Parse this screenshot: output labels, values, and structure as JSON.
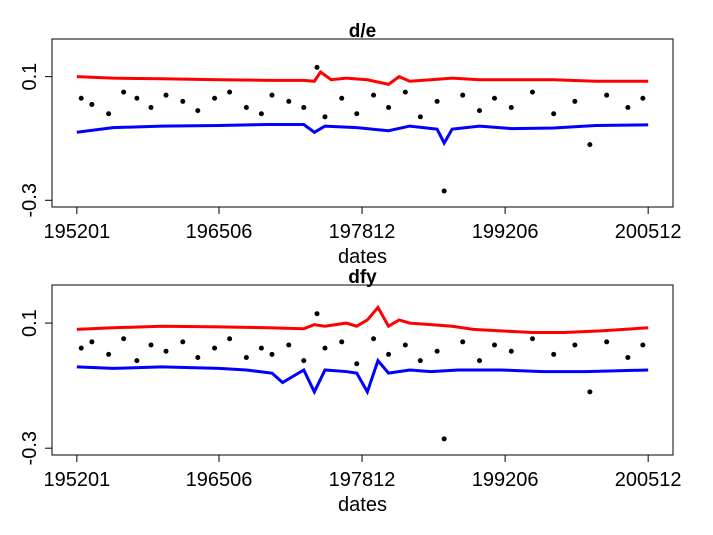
{
  "chart_data": [
    {
      "type": "scatter",
      "title": "d/e",
      "xlabel": "dates",
      "ylabel": "",
      "x_tick_labels": [
        "195201",
        "196506",
        "197812",
        "199206",
        "200512"
      ],
      "y_tick_labels": [
        "-0.3",
        "0.1"
      ],
      "xlim": [
        "1952-01",
        "2005-12"
      ],
      "ylim": [
        -0.3,
        0.2
      ],
      "grid": false,
      "series": [
        {
          "kind": "line",
          "color": "#ff0000",
          "points": [
            [
              "1952-01",
              0.1
            ],
            [
              "1955-06",
              0.095
            ],
            [
              "1960-01",
              0.093
            ],
            [
              "1965-06",
              0.09
            ],
            [
              "1970-01",
              0.088
            ],
            [
              "1973-06",
              0.088
            ],
            [
              "1974-06",
              0.085
            ],
            [
              "1975-01",
              0.115
            ],
            [
              "1976-01",
              0.09
            ],
            [
              "1977-06",
              0.095
            ],
            [
              "1979-06",
              0.09
            ],
            [
              "1981-06",
              0.075
            ],
            [
              "1982-06",
              0.1
            ],
            [
              "1983-06",
              0.085
            ],
            [
              "1985-06",
              0.09
            ],
            [
              "1987-06",
              0.095
            ],
            [
              "1990-01",
              0.09
            ],
            [
              "1993-01",
              0.09
            ],
            [
              "1997-01",
              0.09
            ],
            [
              "2001-01",
              0.085
            ],
            [
              "2005-12",
              0.085
            ]
          ]
        },
        {
          "kind": "line",
          "color": "#0000ff",
          "points": [
            [
              "1952-01",
              -0.08
            ],
            [
              "1955-06",
              -0.065
            ],
            [
              "1960-01",
              -0.06
            ],
            [
              "1965-06",
              -0.058
            ],
            [
              "1970-01",
              -0.055
            ],
            [
              "1973-06",
              -0.055
            ],
            [
              "1974-06",
              -0.08
            ],
            [
              "1975-06",
              -0.06
            ],
            [
              "1978-06",
              -0.065
            ],
            [
              "1981-06",
              -0.075
            ],
            [
              "1983-06",
              -0.06
            ],
            [
              "1986-01",
              -0.07
            ],
            [
              "1986-09",
              -0.115
            ],
            [
              "1987-06",
              -0.07
            ],
            [
              "1990-01",
              -0.06
            ],
            [
              "1993-01",
              -0.068
            ],
            [
              "1997-01",
              -0.066
            ],
            [
              "2001-01",
              -0.058
            ],
            [
              "2005-12",
              -0.056
            ]
          ]
        },
        {
          "kind": "points",
          "color": "#000000",
          "points": [
            [
              "1952-06",
              0.03
            ],
            [
              "1953-06",
              0.01
            ],
            [
              "1955-01",
              -0.02
            ],
            [
              "1956-06",
              0.05
            ],
            [
              "1957-09",
              0.03
            ],
            [
              "1959-01",
              0.0
            ],
            [
              "1960-06",
              0.04
            ],
            [
              "1962-01",
              0.02
            ],
            [
              "1963-06",
              -0.01
            ],
            [
              "1965-01",
              0.03
            ],
            [
              "1966-06",
              0.05
            ],
            [
              "1968-01",
              0.0
            ],
            [
              "1969-06",
              -0.02
            ],
            [
              "1970-06",
              0.04
            ],
            [
              "1972-01",
              0.02
            ],
            [
              "1973-06",
              0.0
            ],
            [
              "1974-09",
              0.13
            ],
            [
              "1975-06",
              -0.03
            ],
            [
              "1977-01",
              0.03
            ],
            [
              "1978-06",
              -0.02
            ],
            [
              "1980-01",
              0.04
            ],
            [
              "1981-06",
              0.0
            ],
            [
              "1983-01",
              0.05
            ],
            [
              "1984-06",
              -0.03
            ],
            [
              "1986-01",
              0.02
            ],
            [
              "1986-09",
              -0.27
            ],
            [
              "1988-06",
              0.04
            ],
            [
              "1990-01",
              -0.01
            ],
            [
              "1991-06",
              0.03
            ],
            [
              "1993-01",
              0.0
            ],
            [
              "1995-01",
              0.05
            ],
            [
              "1997-01",
              -0.02
            ],
            [
              "1999-01",
              0.02
            ],
            [
              "2000-06",
              -0.12
            ],
            [
              "2002-01",
              0.04
            ],
            [
              "2004-01",
              0.0
            ],
            [
              "2005-06",
              0.03
            ]
          ]
        }
      ]
    },
    {
      "type": "scatter",
      "title": "dfy",
      "xlabel": "dates",
      "ylabel": "",
      "x_tick_labels": [
        "195201",
        "196506",
        "197812",
        "199206",
        "200512"
      ],
      "y_tick_labels": [
        "-0.3",
        "0.1"
      ],
      "xlim": [
        "1952-01",
        "2005-12"
      ],
      "ylim": [
        -0.3,
        0.2
      ],
      "grid": false,
      "series": [
        {
          "kind": "line",
          "color": "#ff0000",
          "points": [
            [
              "1952-01",
              0.08
            ],
            [
              "1955-06",
              0.085
            ],
            [
              "1960-01",
              0.09
            ],
            [
              "1965-06",
              0.088
            ],
            [
              "1970-01",
              0.085
            ],
            [
              "1973-06",
              0.082
            ],
            [
              "1974-06",
              0.095
            ],
            [
              "1975-06",
              0.09
            ],
            [
              "1977-06",
              0.1
            ],
            [
              "1978-06",
              0.09
            ],
            [
              "1979-06",
              0.11
            ],
            [
              "1980-06",
              0.15
            ],
            [
              "1981-06",
              0.09
            ],
            [
              "1982-06",
              0.11
            ],
            [
              "1983-06",
              0.1
            ],
            [
              "1985-06",
              0.095
            ],
            [
              "1987-06",
              0.09
            ],
            [
              "1989-06",
              0.08
            ],
            [
              "1992-01",
              0.075
            ],
            [
              "1995-01",
              0.07
            ],
            [
              "1998-01",
              0.07
            ],
            [
              "2001-06",
              0.075
            ],
            [
              "2005-12",
              0.085
            ]
          ]
        },
        {
          "kind": "line",
          "color": "#0000ff",
          "points": [
            [
              "1952-01",
              -0.04
            ],
            [
              "1955-06",
              -0.045
            ],
            [
              "1960-01",
              -0.04
            ],
            [
              "1965-06",
              -0.045
            ],
            [
              "1968-01",
              -0.05
            ],
            [
              "1970-06",
              -0.06
            ],
            [
              "1971-06",
              -0.09
            ],
            [
              "1973-06",
              -0.05
            ],
            [
              "1974-06",
              -0.12
            ],
            [
              "1975-06",
              -0.05
            ],
            [
              "1977-06",
              -0.055
            ],
            [
              "1978-06",
              -0.06
            ],
            [
              "1979-06",
              -0.12
            ],
            [
              "1980-06",
              -0.02
            ],
            [
              "1981-06",
              -0.06
            ],
            [
              "1983-06",
              -0.05
            ],
            [
              "1985-06",
              -0.055
            ],
            [
              "1988-01",
              -0.05
            ],
            [
              "1992-01",
              -0.05
            ],
            [
              "1996-01",
              -0.055
            ],
            [
              "2000-01",
              -0.055
            ],
            [
              "2005-12",
              -0.05
            ]
          ]
        },
        {
          "kind": "points",
          "color": "#000000",
          "points": [
            [
              "1952-06",
              0.02
            ],
            [
              "1953-06",
              0.04
            ],
            [
              "1955-01",
              0.0
            ],
            [
              "1956-06",
              0.05
            ],
            [
              "1957-09",
              -0.02
            ],
            [
              "1959-01",
              0.03
            ],
            [
              "1960-06",
              0.01
            ],
            [
              "1962-01",
              0.04
            ],
            [
              "1963-06",
              -0.01
            ],
            [
              "1965-01",
              0.02
            ],
            [
              "1966-06",
              0.05
            ],
            [
              "1968-01",
              -0.01
            ],
            [
              "1969-06",
              0.02
            ],
            [
              "1970-06",
              0.0
            ],
            [
              "1972-01",
              0.03
            ],
            [
              "1973-06",
              -0.02
            ],
            [
              "1974-09",
              0.13
            ],
            [
              "1975-06",
              0.02
            ],
            [
              "1977-01",
              0.04
            ],
            [
              "1978-06",
              -0.03
            ],
            [
              "1980-01",
              0.05
            ],
            [
              "1981-06",
              0.0
            ],
            [
              "1983-01",
              0.03
            ],
            [
              "1984-06",
              -0.02
            ],
            [
              "1986-01",
              0.01
            ],
            [
              "1986-09",
              -0.27
            ],
            [
              "1988-06",
              0.04
            ],
            [
              "1990-01",
              -0.02
            ],
            [
              "1991-06",
              0.03
            ],
            [
              "1993-01",
              0.01
            ],
            [
              "1995-01",
              0.05
            ],
            [
              "1997-01",
              0.0
            ],
            [
              "1999-01",
              0.03
            ],
            [
              "2000-06",
              -0.12
            ],
            [
              "2002-01",
              0.04
            ],
            [
              "2004-01",
              -0.01
            ],
            [
              "2005-06",
              0.03
            ]
          ]
        }
      ]
    }
  ]
}
